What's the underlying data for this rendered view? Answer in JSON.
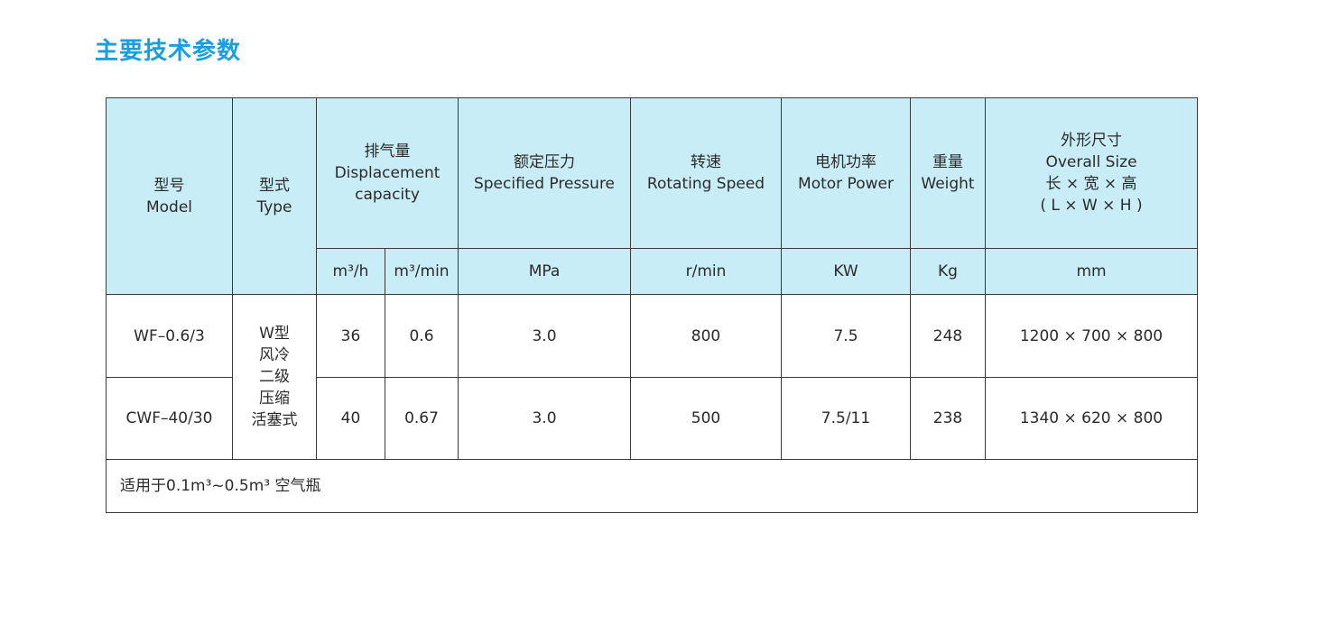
{
  "title": "主要技术参数",
  "colors": {
    "title": "#1a9fdc",
    "header_bg": "#c9edf7"
  },
  "header": {
    "model": {
      "cn": "型号",
      "en": "Model"
    },
    "type": {
      "cn": "型式",
      "en": "Type"
    },
    "displacement": {
      "cn": "排气量",
      "en1": "Displacement",
      "en2": "capacity",
      "unit1": "m³/h",
      "unit2": "m³/min"
    },
    "pressure": {
      "cn": "额定压力",
      "en": "Specified Pressure",
      "unit": "MPa"
    },
    "speed": {
      "cn": "转速",
      "en": "Rotating Speed",
      "unit": "r/min"
    },
    "power": {
      "cn": "电机功率",
      "en": "Motor Power",
      "unit": "KW"
    },
    "weight": {
      "cn": "重量",
      "en": "Weight",
      "unit": "Kg"
    },
    "size": {
      "cn": "外形尺寸",
      "en": "Overall Size",
      "dims_cn": "长 × 宽 × 高",
      "dims_en": "( L × W × H )",
      "unit": "mm"
    }
  },
  "type_value": [
    "W型",
    "风冷",
    "二级",
    "压缩",
    "活塞式"
  ],
  "rows": [
    {
      "model": "WF–0.6/3",
      "m3h": "36",
      "m3min": "0.6",
      "pressure": "3.0",
      "speed": "800",
      "power": "7.5",
      "weight": "248",
      "size": "1200 × 700 × 800"
    },
    {
      "model": "CWF–40/30",
      "m3h": "40",
      "m3min": "0.67",
      "pressure": "3.0",
      "speed": "500",
      "power": "7.5/11",
      "weight": "238",
      "size": "1340 × 620 × 800"
    }
  ],
  "note": "适用于0.1m³~0.5m³ 空气瓶"
}
